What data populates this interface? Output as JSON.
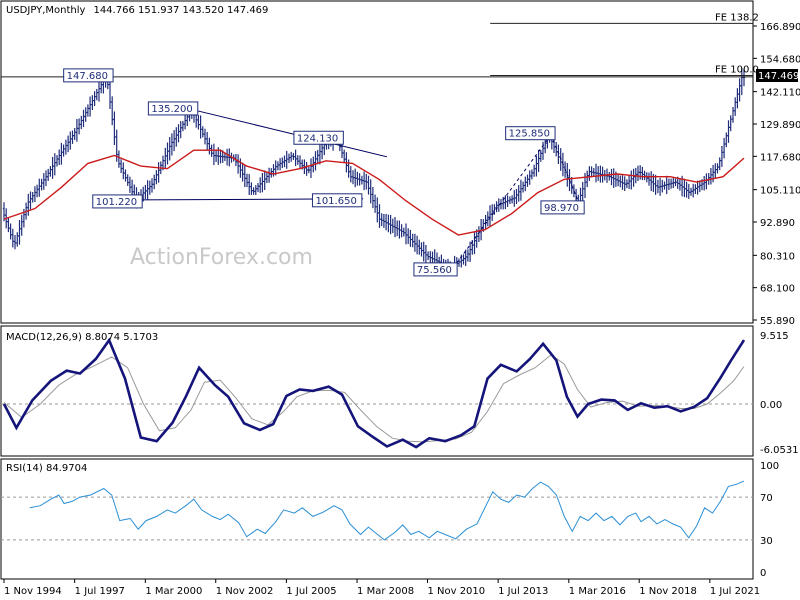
{
  "chart_data": [
    {
      "type": "candlestick",
      "title": "USDJPY,Monthly",
      "ohlc_header": "144.766 151.937 143.520 147.469",
      "current_price": "147.469",
      "y_ticks": [
        "166.890",
        "154.680",
        "142.110",
        "129.890",
        "117.680",
        "105.110",
        "92.890",
        "80.310",
        "68.100",
        "55.890"
      ],
      "y_range": [
        55.89,
        166.89
      ],
      "x_ticks": [
        "1 Nov 1994",
        "1 Jul 1997",
        "1 Mar 2000",
        "1 Nov 2002",
        "1 Jul 2005",
        "1 Mar 2008",
        "1 Nov 2010",
        "1 Jul 2013",
        "1 Mar 2016",
        "1 Nov 2018",
        "1 Jul 2021"
      ],
      "x_range_years": [
        1994.83,
        2022.79
      ],
      "price_anchors": [
        [
          1994.83,
          98
        ],
        [
          1995.3,
          84
        ],
        [
          1995.8,
          100
        ],
        [
          1996.5,
          110
        ],
        [
          1997.0,
          118
        ],
        [
          1997.6,
          127
        ],
        [
          1998.6,
          145
        ],
        [
          1998.8,
          147.68
        ],
        [
          1999.2,
          116
        ],
        [
          1999.9,
          101.22
        ],
        [
          2000.5,
          107
        ],
        [
          2001.2,
          122
        ],
        [
          2002.0,
          135.2
        ],
        [
          2002.8,
          118
        ],
        [
          2003.6,
          117
        ],
        [
          2004.3,
          104
        ],
        [
          2005.2,
          114
        ],
        [
          2005.8,
          118
        ],
        [
          2006.4,
          112
        ],
        [
          2007.0,
          122
        ],
        [
          2007.5,
          124.13
        ],
        [
          2008.0,
          110
        ],
        [
          2008.6,
          108
        ],
        [
          2009.1,
          94
        ],
        [
          2010.0,
          89
        ],
        [
          2010.9,
          80
        ],
        [
          2011.8,
          75.56
        ],
        [
          2012.4,
          80
        ],
        [
          2013.0,
          92
        ],
        [
          2013.5,
          99
        ],
        [
          2014.2,
          102
        ],
        [
          2014.9,
          112
        ],
        [
          2015.5,
          125.85
        ],
        [
          2016.1,
          112
        ],
        [
          2016.6,
          100
        ],
        [
          2017.0,
          112
        ],
        [
          2017.8,
          110
        ],
        [
          2018.4,
          107
        ],
        [
          2018.9,
          112
        ],
        [
          2019.6,
          106
        ],
        [
          2020.3,
          108
        ],
        [
          2020.8,
          104
        ],
        [
          2021.4,
          108
        ],
        [
          2021.9,
          114
        ],
        [
          2022.3,
          129
        ],
        [
          2022.79,
          147.47
        ]
      ],
      "moving_average": [
        [
          1994.83,
          94
        ],
        [
          1996.0,
          98
        ],
        [
          1997.0,
          106
        ],
        [
          1998.0,
          115
        ],
        [
          1999.0,
          118
        ],
        [
          2000.0,
          114
        ],
        [
          2001.0,
          113
        ],
        [
          2002.0,
          120
        ],
        [
          2003.0,
          120
        ],
        [
          2004.0,
          114
        ],
        [
          2005.0,
          111
        ],
        [
          2006.0,
          113
        ],
        [
          2007.0,
          116
        ],
        [
          2008.0,
          115
        ],
        [
          2009.0,
          109
        ],
        [
          2010.0,
          101
        ],
        [
          2011.0,
          94
        ],
        [
          2012.0,
          88
        ],
        [
          2013.0,
          90
        ],
        [
          2014.0,
          96
        ],
        [
          2015.0,
          104
        ],
        [
          2016.0,
          109
        ],
        [
          2017.0,
          110
        ],
        [
          2018.0,
          111
        ],
        [
          2019.0,
          110
        ],
        [
          2020.0,
          110
        ],
        [
          2021.0,
          108
        ],
        [
          2022.0,
          110
        ],
        [
          2022.79,
          117
        ]
      ],
      "callouts": [
        {
          "label": "147.680",
          "value": 147.68,
          "anchor": "top"
        },
        {
          "label": "135.200",
          "value": 135.2,
          "anchor": "top"
        },
        {
          "label": "124.130",
          "value": 124.13,
          "anchor": "top"
        },
        {
          "label": "125.850",
          "value": 125.85,
          "anchor": "top"
        },
        {
          "label": "101.220",
          "value": 101.22,
          "anchor": "bottom"
        },
        {
          "label": "101.650",
          "value": 101.65,
          "anchor": "bottom"
        },
        {
          "label": "98.970",
          "value": 98.97,
          "anchor": "bottom"
        },
        {
          "label": "75.560",
          "value": 75.56,
          "anchor": "bottom"
        }
      ],
      "fib_levels": [
        {
          "label": "FE 138.2",
          "value": 167.9
        },
        {
          "label": "FE 100.0",
          "value": 148.2
        }
      ],
      "watermark": "ActionForex.com"
    },
    {
      "type": "line",
      "title": "MACD(12,26,9) 8.8074 5.1703",
      "y_ticks": [
        "9.515",
        "0.00",
        "-6.0531"
      ],
      "y_range": [
        -6.6,
        10.3
      ],
      "zero_label_bold": "0.00",
      "series": [
        {
          "points": [
            [
              1994.83,
              0
            ],
            [
              1995.3,
              -3.2
            ],
            [
              1995.9,
              0.5
            ],
            [
              1996.6,
              3.2
            ],
            [
              1997.2,
              4.6
            ],
            [
              1997.7,
              4.2
            ],
            [
              1998.3,
              6.2
            ],
            [
              1998.8,
              8.8
            ],
            [
              1999.4,
              3.5
            ],
            [
              2000.0,
              -4.5
            ],
            [
              2000.6,
              -5.0
            ],
            [
              2001.2,
              -2.5
            ],
            [
              2001.7,
              1.0
            ],
            [
              2002.2,
              5.0
            ],
            [
              2002.8,
              2.6
            ],
            [
              2003.3,
              1.0
            ],
            [
              2003.9,
              -2.6
            ],
            [
              2004.5,
              -3.5
            ],
            [
              2005.0,
              -2.7
            ],
            [
              2005.5,
              1.1
            ],
            [
              2006.0,
              2.0
            ],
            [
              2006.5,
              1.8
            ],
            [
              2007.1,
              2.4
            ],
            [
              2007.6,
              1.3
            ],
            [
              2008.2,
              -3.0
            ],
            [
              2008.8,
              -4.5
            ],
            [
              2009.3,
              -5.7
            ],
            [
              2009.9,
              -4.8
            ],
            [
              2010.4,
              -5.8
            ],
            [
              2010.9,
              -4.6
            ],
            [
              2011.5,
              -5.0
            ],
            [
              2012.1,
              -4.2
            ],
            [
              2012.6,
              -3.0
            ],
            [
              2013.1,
              3.5
            ],
            [
              2013.6,
              5.4
            ],
            [
              2014.2,
              4.5
            ],
            [
              2014.7,
              6.2
            ],
            [
              2015.2,
              8.3
            ],
            [
              2015.7,
              6.0
            ],
            [
              2016.1,
              1.0
            ],
            [
              2016.5,
              -1.7
            ],
            [
              2016.9,
              0.0
            ],
            [
              2017.4,
              0.6
            ],
            [
              2017.9,
              0.5
            ],
            [
              2018.4,
              -0.8
            ],
            [
              2018.9,
              0.1
            ],
            [
              2019.4,
              -0.5
            ],
            [
              2019.9,
              -0.3
            ],
            [
              2020.4,
              -1.0
            ],
            [
              2020.9,
              -0.4
            ],
            [
              2021.4,
              0.8
            ],
            [
              2021.9,
              3.6
            ],
            [
              2022.3,
              6.0
            ],
            [
              2022.79,
              8.81
            ]
          ]
        },
        {
          "points": [
            [
              1994.83,
              0.2
            ],
            [
              1995.5,
              -1.8
            ],
            [
              1996.2,
              0.0
            ],
            [
              1996.9,
              2.6
            ],
            [
              1997.5,
              4.0
            ],
            [
              1998.2,
              5.2
            ],
            [
              1998.9,
              6.5
            ],
            [
              1999.5,
              5.0
            ],
            [
              2000.1,
              0.0
            ],
            [
              2000.7,
              -3.6
            ],
            [
              2001.3,
              -3.2
            ],
            [
              2001.9,
              -0.8
            ],
            [
              2002.4,
              3.0
            ],
            [
              2003.0,
              3.3
            ],
            [
              2003.6,
              0.8
            ],
            [
              2004.2,
              -2.0
            ],
            [
              2004.8,
              -2.8
            ],
            [
              2005.4,
              -1.0
            ],
            [
              2005.9,
              1.0
            ],
            [
              2006.5,
              1.8
            ],
            [
              2007.1,
              1.9
            ],
            [
              2007.7,
              1.6
            ],
            [
              2008.3,
              -0.8
            ],
            [
              2008.9,
              -3.0
            ],
            [
              2009.5,
              -4.6
            ],
            [
              2010.1,
              -5.0
            ],
            [
              2010.7,
              -5.1
            ],
            [
              2011.3,
              -4.9
            ],
            [
              2011.9,
              -4.7
            ],
            [
              2012.5,
              -3.8
            ],
            [
              2013.1,
              -1.0
            ],
            [
              2013.7,
              2.8
            ],
            [
              2014.3,
              4.0
            ],
            [
              2014.9,
              5.0
            ],
            [
              2015.5,
              6.8
            ],
            [
              2016.0,
              5.5
            ],
            [
              2016.5,
              2.0
            ],
            [
              2017.0,
              -0.4
            ],
            [
              2017.6,
              0.2
            ],
            [
              2018.2,
              0.4
            ],
            [
              2018.8,
              -0.3
            ],
            [
              2019.4,
              -0.2
            ],
            [
              2019.9,
              -0.3
            ],
            [
              2020.4,
              -0.6
            ],
            [
              2020.9,
              -0.6
            ],
            [
              2021.4,
              0.0
            ],
            [
              2021.9,
              1.5
            ],
            [
              2022.4,
              3.2
            ],
            [
              2022.79,
              5.17
            ]
          ]
        }
      ]
    },
    {
      "type": "line",
      "title": "RSI(14) 84.9704",
      "y_ticks": [
        "100",
        "70",
        "30",
        "0"
      ],
      "y_range": [
        0,
        100
      ],
      "levels": [
        70,
        30
      ],
      "series": [
        {
          "points": [
            [
              1995.8,
              60
            ],
            [
              1996.2,
              62
            ],
            [
              1996.6,
              68
            ],
            [
              1996.9,
              72
            ],
            [
              1997.1,
              64
            ],
            [
              1997.4,
              66
            ],
            [
              1997.7,
              70
            ],
            [
              1998.1,
              72
            ],
            [
              1998.6,
              78
            ],
            [
              1998.9,
              72
            ],
            [
              1999.2,
              48
            ],
            [
              1999.6,
              50
            ],
            [
              1999.9,
              40
            ],
            [
              2000.2,
              48
            ],
            [
              2000.6,
              52
            ],
            [
              2001.0,
              58
            ],
            [
              2001.3,
              55
            ],
            [
              2001.7,
              62
            ],
            [
              2002.0,
              68
            ],
            [
              2002.3,
              58
            ],
            [
              2002.7,
              52
            ],
            [
              2003.0,
              49
            ],
            [
              2003.3,
              54
            ],
            [
              2003.7,
              46
            ],
            [
              2004.0,
              33
            ],
            [
              2004.4,
              40
            ],
            [
              2004.7,
              36
            ],
            [
              2005.1,
              47
            ],
            [
              2005.4,
              58
            ],
            [
              2005.8,
              55
            ],
            [
              2006.1,
              60
            ],
            [
              2006.5,
              52
            ],
            [
              2006.9,
              56
            ],
            [
              2007.3,
              62
            ],
            [
              2007.6,
              58
            ],
            [
              2007.9,
              45
            ],
            [
              2008.3,
              35
            ],
            [
              2008.6,
              42
            ],
            [
              2008.9,
              36
            ],
            [
              2009.2,
              30
            ],
            [
              2009.6,
              37
            ],
            [
              2009.9,
              44
            ],
            [
              2010.2,
              35
            ],
            [
              2010.5,
              38
            ],
            [
              2010.9,
              32
            ],
            [
              2011.2,
              38
            ],
            [
              2011.6,
              34
            ],
            [
              2011.9,
              31
            ],
            [
              2012.3,
              40
            ],
            [
              2012.7,
              45
            ],
            [
              2013.0,
              60
            ],
            [
              2013.3,
              75
            ],
            [
              2013.6,
              68
            ],
            [
              2013.9,
              65
            ],
            [
              2014.2,
              72
            ],
            [
              2014.5,
              70
            ],
            [
              2014.8,
              78
            ],
            [
              2015.1,
              84
            ],
            [
              2015.4,
              80
            ],
            [
              2015.7,
              72
            ],
            [
              2016.0,
              52
            ],
            [
              2016.3,
              38
            ],
            [
              2016.6,
              52
            ],
            [
              2016.9,
              48
            ],
            [
              2017.2,
              55
            ],
            [
              2017.5,
              48
            ],
            [
              2017.8,
              52
            ],
            [
              2018.1,
              44
            ],
            [
              2018.4,
              52
            ],
            [
              2018.7,
              55
            ],
            [
              2018.9,
              47
            ],
            [
              2019.2,
              52
            ],
            [
              2019.5,
              45
            ],
            [
              2019.8,
              49
            ],
            [
              2020.1,
              45
            ],
            [
              2020.4,
              42
            ],
            [
              2020.7,
              32
            ],
            [
              2021.0,
              43
            ],
            [
              2021.3,
              60
            ],
            [
              2021.6,
              55
            ],
            [
              2021.9,
              66
            ],
            [
              2022.2,
              80
            ],
            [
              2022.5,
              82
            ],
            [
              2022.79,
              84.97
            ]
          ]
        }
      ]
    }
  ]
}
